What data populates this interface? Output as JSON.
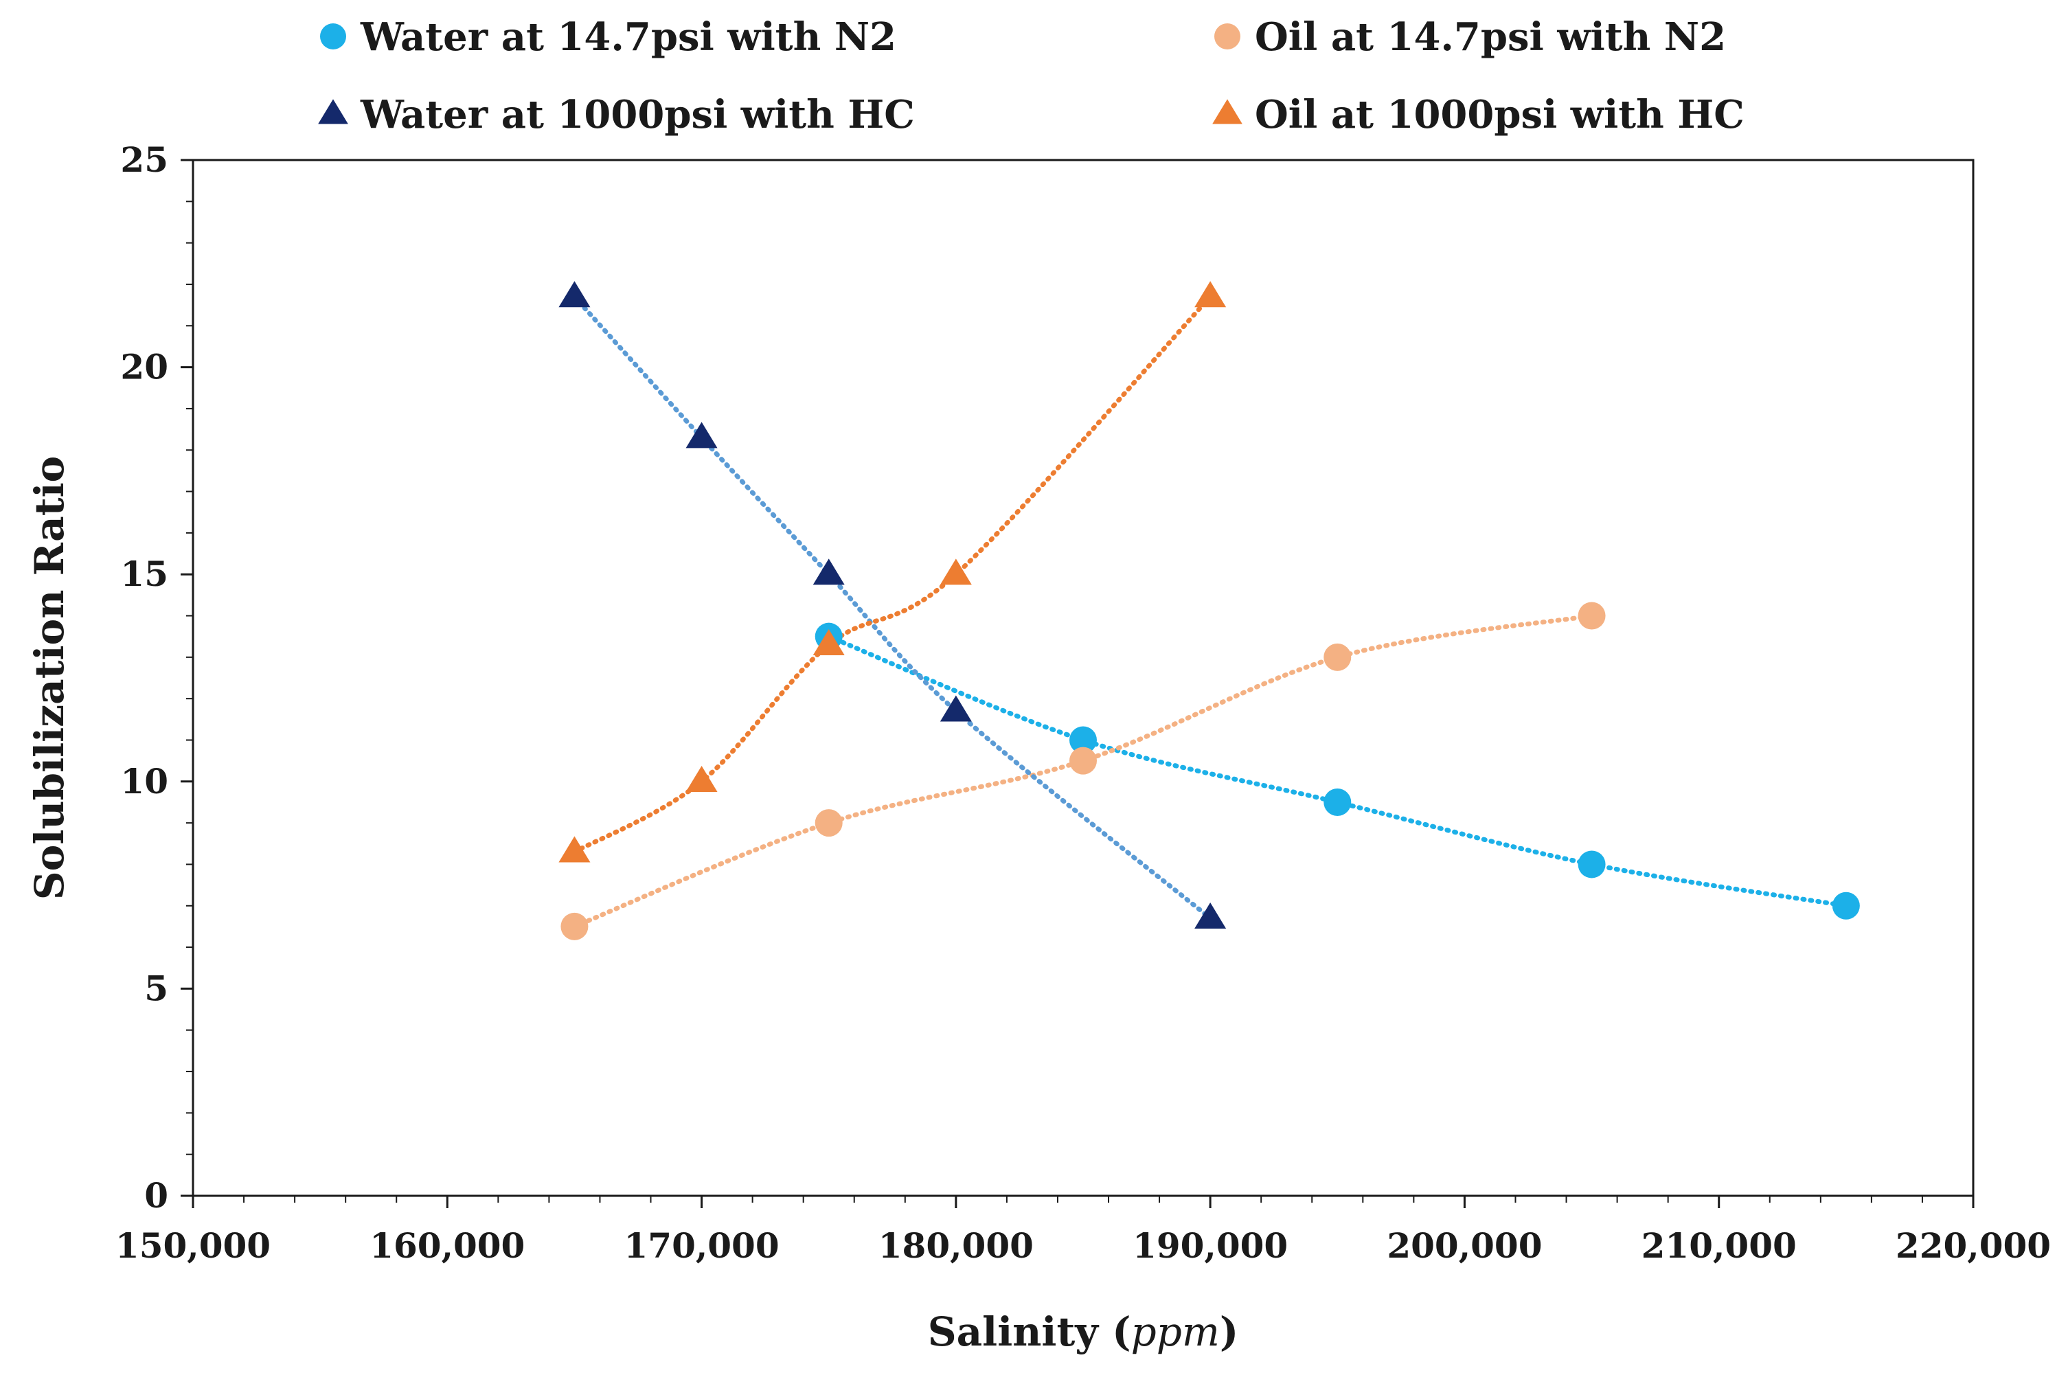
{
  "chart_data": {
    "type": "scatter",
    "title": "",
    "xlabel": "Salinity",
    "xlabel_unit": "ppm",
    "ylabel": "Solubilization Ratio",
    "xlim": [
      150000,
      220000
    ],
    "ylim": [
      0,
      25
    ],
    "x_ticks": [
      150000,
      160000,
      170000,
      180000,
      190000,
      200000,
      210000,
      220000
    ],
    "x_tick_labels": [
      "150,000",
      "160,000",
      "170,000",
      "180,000",
      "190,000",
      "200,000",
      "210,000",
      "220,000"
    ],
    "y_ticks": [
      0,
      5,
      10,
      15,
      20,
      25
    ],
    "y_tick_labels": [
      "0",
      "5",
      "10",
      "15",
      "20",
      "25"
    ],
    "grid": false,
    "legend_position": "top",
    "trendlines": "dotted",
    "series": [
      {
        "name": "Water at 14.7psi with N2",
        "marker": "circle",
        "color": "#1cb0e8",
        "trend_color": "#1cb0e8",
        "x": [
          175000,
          185000,
          195000,
          205000,
          215000
        ],
        "y": [
          13.5,
          11.0,
          9.5,
          8.0,
          7.0
        ]
      },
      {
        "name": "Oil at 14.7psi with N2",
        "marker": "circle",
        "color": "#f4b183",
        "trend_color": "#f4b183",
        "x": [
          165000,
          175000,
          185000,
          195000,
          205000
        ],
        "y": [
          6.5,
          9.0,
          10.5,
          13.0,
          14.0
        ]
      },
      {
        "name": "Water at 1000psi with HC",
        "marker": "triangle",
        "color": "#14296b",
        "trend_color": "#5b9bd5",
        "x": [
          165000,
          170000,
          175000,
          180000,
          190000
        ],
        "y": [
          21.7,
          18.3,
          15.0,
          11.7,
          6.7
        ]
      },
      {
        "name": "Oil at 1000psi with HC",
        "marker": "triangle",
        "color": "#ed7d31",
        "trend_color": "#ed7d31",
        "x": [
          165000,
          170000,
          175000,
          180000,
          190000
        ],
        "y": [
          8.3,
          10.0,
          13.3,
          15.0,
          21.7
        ]
      }
    ]
  }
}
